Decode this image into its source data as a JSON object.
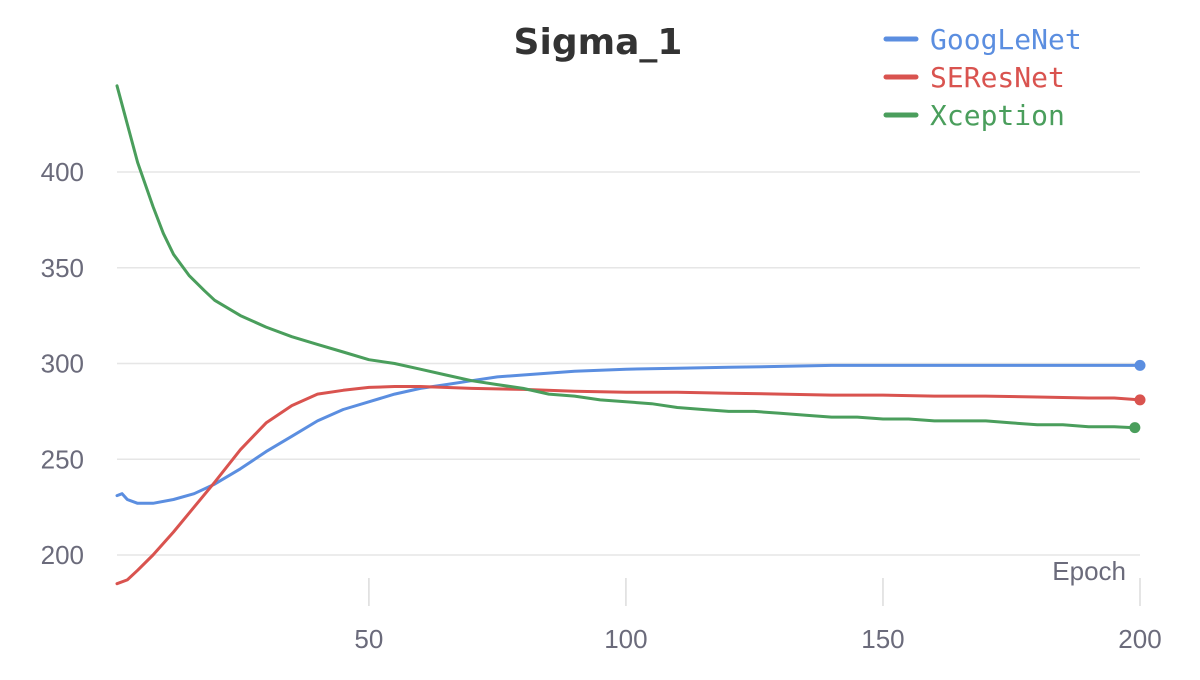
{
  "chart_data": {
    "type": "line",
    "title": "Sigma_1",
    "xlabel": "Epoch",
    "ylabel": "",
    "xlim": [
      1,
      200
    ],
    "ylim": [
      185,
      450
    ],
    "x_ticks": [
      50,
      100,
      150,
      200
    ],
    "y_ticks": [
      200,
      250,
      300,
      350,
      400
    ],
    "grid": true,
    "legend_position": "top-right",
    "series": [
      {
        "name": "GoogLeNet",
        "color": "#5b8ee0",
        "points": [
          [
            1,
            231
          ],
          [
            2,
            232
          ],
          [
            3,
            229
          ],
          [
            5,
            227
          ],
          [
            8,
            227
          ],
          [
            12,
            229
          ],
          [
            16,
            232
          ],
          [
            20,
            237
          ],
          [
            25,
            245
          ],
          [
            30,
            254
          ],
          [
            35,
            262
          ],
          [
            40,
            270
          ],
          [
            45,
            276
          ],
          [
            50,
            280
          ],
          [
            55,
            284
          ],
          [
            60,
            287
          ],
          [
            65,
            289
          ],
          [
            70,
            291
          ],
          [
            75,
            293
          ],
          [
            80,
            294
          ],
          [
            90,
            296
          ],
          [
            100,
            297
          ],
          [
            110,
            297.5
          ],
          [
            120,
            298
          ],
          [
            130,
            298.5
          ],
          [
            140,
            299
          ],
          [
            150,
            299
          ],
          [
            160,
            299
          ],
          [
            170,
            299
          ],
          [
            180,
            299
          ],
          [
            190,
            299
          ],
          [
            200,
            299
          ]
        ]
      },
      {
        "name": "SEResNet",
        "color": "#d9534f",
        "points": [
          [
            1,
            185
          ],
          [
            3,
            187
          ],
          [
            5,
            192
          ],
          [
            8,
            200
          ],
          [
            12,
            212
          ],
          [
            16,
            225
          ],
          [
            20,
            238
          ],
          [
            25,
            255
          ],
          [
            30,
            269
          ],
          [
            35,
            278
          ],
          [
            40,
            284
          ],
          [
            45,
            286
          ],
          [
            50,
            287.5
          ],
          [
            55,
            288
          ],
          [
            60,
            288
          ],
          [
            70,
            287
          ],
          [
            80,
            286.5
          ],
          [
            90,
            285.5
          ],
          [
            100,
            285
          ],
          [
            110,
            285
          ],
          [
            120,
            284.5
          ],
          [
            130,
            284
          ],
          [
            140,
            283.5
          ],
          [
            150,
            283.5
          ],
          [
            160,
            283
          ],
          [
            170,
            283
          ],
          [
            180,
            282.5
          ],
          [
            190,
            282
          ],
          [
            195,
            282
          ],
          [
            200,
            281
          ]
        ]
      },
      {
        "name": "Xception",
        "color": "#4a9e5c",
        "points": [
          [
            1,
            445
          ],
          [
            3,
            425
          ],
          [
            5,
            405
          ],
          [
            8,
            382
          ],
          [
            10,
            368
          ],
          [
            12,
            357
          ],
          [
            15,
            346
          ],
          [
            18,
            338
          ],
          [
            20,
            333
          ],
          [
            25,
            325
          ],
          [
            30,
            319
          ],
          [
            35,
            314
          ],
          [
            40,
            310
          ],
          [
            45,
            306
          ],
          [
            50,
            302
          ],
          [
            55,
            300
          ],
          [
            60,
            297
          ],
          [
            65,
            294
          ],
          [
            70,
            291
          ],
          [
            75,
            289
          ],
          [
            80,
            287
          ],
          [
            85,
            284
          ],
          [
            90,
            283
          ],
          [
            95,
            281
          ],
          [
            100,
            280
          ],
          [
            105,
            279
          ],
          [
            110,
            277
          ],
          [
            115,
            276
          ],
          [
            120,
            275
          ],
          [
            125,
            275
          ],
          [
            130,
            274
          ],
          [
            135,
            273
          ],
          [
            140,
            272
          ],
          [
            145,
            272
          ],
          [
            150,
            271
          ],
          [
            155,
            271
          ],
          [
            160,
            270
          ],
          [
            165,
            270
          ],
          [
            170,
            270
          ],
          [
            175,
            269
          ],
          [
            180,
            268
          ],
          [
            185,
            268
          ],
          [
            190,
            267
          ],
          [
            195,
            267
          ],
          [
            199,
            266.5
          ]
        ]
      }
    ]
  }
}
